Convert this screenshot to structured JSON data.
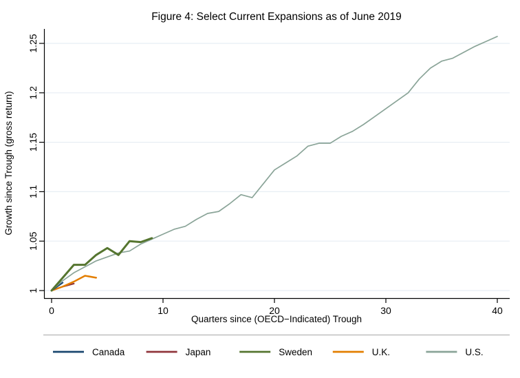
{
  "chart_data": {
    "type": "line",
    "title": "Figure 4: Select Current Expansions as of June 2019",
    "xlabel": "Quarters since (OECD−Indicated) Trough",
    "ylabel": "Growth since Trough (gross return)",
    "xlim": [
      0,
      40
    ],
    "ylim": [
      1.0,
      1.25
    ],
    "xticks": [
      0,
      10,
      20,
      30,
      40
    ],
    "xtick_labels": [
      "0",
      "10",
      "20",
      "30",
      "40"
    ],
    "yticks": [
      1.0,
      1.05,
      1.1,
      1.15,
      1.2,
      1.25
    ],
    "ytick_labels": [
      "1",
      "1.05",
      "1.1",
      "1.15",
      "1.2",
      "1.25"
    ],
    "grid": true,
    "legend_position": "bottom",
    "colors": {
      "title": "#1e2d58",
      "gridline": "#e7eef4",
      "axis": "#000000",
      "legend_divider": "#a6a6a6"
    },
    "series": [
      {
        "name": "Canada",
        "color": "#1a476f",
        "width": 2.2,
        "x": [
          0,
          1
        ],
        "y": [
          1.0,
          1.008
        ]
      },
      {
        "name": "Japan",
        "color": "#90353b",
        "width": 2.2,
        "x": [
          0,
          1,
          2
        ],
        "y": [
          1.0,
          1.004,
          1.007
        ]
      },
      {
        "name": "Sweden",
        "color": "#55752f",
        "width": 3,
        "x": [
          0,
          1,
          2,
          3,
          4,
          5,
          6,
          7,
          8,
          9
        ],
        "y": [
          1.0,
          1.013,
          1.026,
          1.026,
          1.036,
          1.043,
          1.036,
          1.05,
          1.049,
          1.053
        ]
      },
      {
        "name": "U.K.",
        "color": "#e37e00",
        "width": 2.5,
        "x": [
          0,
          1,
          2,
          3,
          4
        ],
        "y": [
          1.0,
          1.004,
          1.009,
          1.015,
          1.013
        ]
      },
      {
        "name": "U.S.",
        "color": "#8aa498",
        "width": 1.7,
        "x": [
          0,
          1,
          2,
          3,
          4,
          5,
          6,
          7,
          8,
          9,
          10,
          11,
          12,
          13,
          14,
          15,
          16,
          17,
          18,
          19,
          20,
          21,
          22,
          23,
          24,
          25,
          26,
          27,
          28,
          29,
          30,
          31,
          32,
          33,
          34,
          35,
          36,
          37,
          38,
          39,
          40
        ],
        "y": [
          1.0,
          1.01,
          1.018,
          1.024,
          1.03,
          1.034,
          1.038,
          1.04,
          1.047,
          1.052,
          1.057,
          1.062,
          1.065,
          1.072,
          1.078,
          1.08,
          1.088,
          1.097,
          1.094,
          1.108,
          1.122,
          1.129,
          1.136,
          1.146,
          1.149,
          1.149,
          1.156,
          1.161,
          1.168,
          1.176,
          1.184,
          1.192,
          1.2,
          1.214,
          1.225,
          1.232,
          1.235,
          1.241,
          1.247,
          1.252,
          1.257
        ]
      }
    ]
  }
}
